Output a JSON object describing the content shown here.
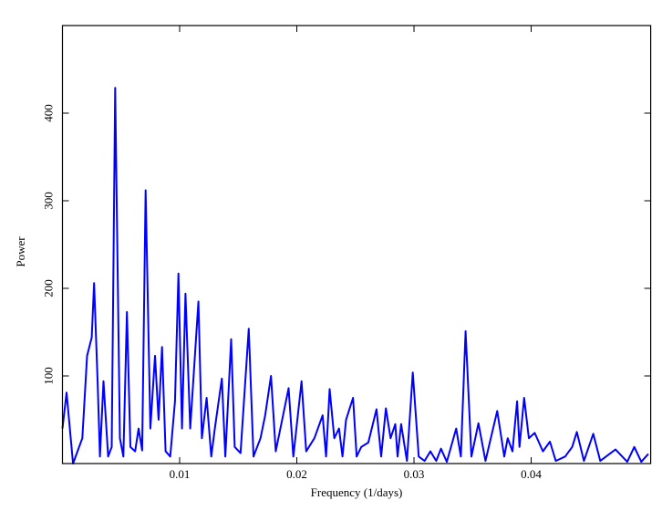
{
  "chart_data": {
    "type": "line",
    "x_label": "Frequency (1/days)",
    "y_label": "Power",
    "x": [
      0,
      0.00035,
      0.0009,
      0.0017,
      0.0021,
      0.0025,
      0.0027,
      0.003,
      0.0032,
      0.0035,
      0.0039,
      0.0042,
      0.0045,
      0.0049,
      0.0052,
      0.0055,
      0.0058,
      0.0062,
      0.0065,
      0.0068,
      0.0071,
      0.0075,
      0.0079,
      0.0082,
      0.0085,
      0.0088,
      0.0092,
      0.0096,
      0.0099,
      0.0102,
      0.0105,
      0.0109,
      0.0116,
      0.0119,
      0.0123,
      0.0127,
      0.013,
      0.0136,
      0.0139,
      0.0144,
      0.0147,
      0.0152,
      0.0159,
      0.0163,
      0.0169,
      0.0173,
      0.0178,
      0.0182,
      0.0186,
      0.0193,
      0.0197,
      0.0204,
      0.0208,
      0.0215,
      0.0222,
      0.0225,
      0.0228,
      0.0232,
      0.0236,
      0.0239,
      0.0242,
      0.0248,
      0.0251,
      0.0255,
      0.0261,
      0.0268,
      0.0272,
      0.0276,
      0.028,
      0.0284,
      0.0286,
      0.0289,
      0.0294,
      0.0299,
      0.0304,
      0.0309,
      0.0314,
      0.0319,
      0.0323,
      0.0328,
      0.0336,
      0.034,
      0.0344,
      0.0349,
      0.0355,
      0.0361,
      0.0371,
      0.0377,
      0.038,
      0.0384,
      0.0388,
      0.039,
      0.0394,
      0.0398,
      0.0403,
      0.041,
      0.0416,
      0.0421,
      0.0429,
      0.0435,
      0.0439,
      0.0445,
      0.0453,
      0.0459,
      0.0472,
      0.0482,
      0.0488,
      0.0494,
      0.05
    ],
    "series": [
      {
        "name": "Power",
        "color": "#0000ff",
        "values": [
          40,
          81,
          0,
          29,
          123,
          144,
          206,
          92,
          8,
          94,
          8,
          19,
          429,
          29,
          8,
          173,
          19,
          14,
          40,
          15,
          312,
          40,
          123,
          50,
          133,
          14,
          8,
          71,
          217,
          40,
          194,
          40,
          185,
          29,
          75,
          8,
          40,
          97,
          8,
          142,
          19,
          12,
          154,
          8,
          29,
          55,
          100,
          14,
          40,
          86,
          8,
          94,
          14,
          29,
          55,
          8,
          85,
          29,
          40,
          8,
          50,
          75,
          8,
          19,
          24,
          62,
          8,
          63,
          29,
          45,
          8,
          45,
          3,
          104,
          8,
          3,
          14,
          3,
          17,
          2,
          40,
          8,
          151,
          8,
          46,
          3,
          60,
          8,
          29,
          14,
          71,
          19,
          75,
          29,
          35,
          14,
          25,
          3,
          8,
          19,
          36,
          3,
          34,
          3,
          16,
          2,
          19,
          2,
          11
        ]
      }
    ],
    "xlim": [
      0,
      0.0502
    ],
    "ylim": [
      0,
      500
    ],
    "xticks": [
      0.01,
      0.02,
      0.03,
      0.04
    ],
    "yticks": [
      100,
      200,
      300,
      400
    ]
  }
}
